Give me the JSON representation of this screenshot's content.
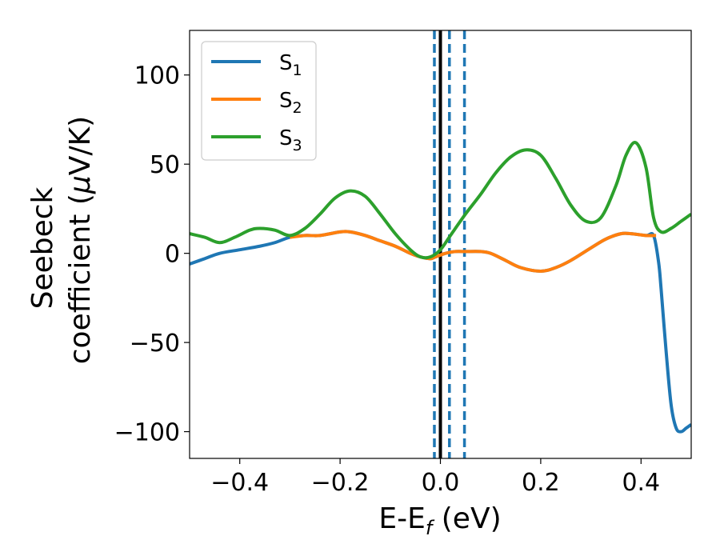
{
  "chart_data": {
    "type": "line",
    "xlabel": "E-E",
    "xlabel_sub": "f",
    "xlabel_unit": " (eV)",
    "ylabel_line1": "Seebeck",
    "ylabel_line2": "coefficient  (",
    "ylabel_mu": "μ",
    "ylabel_line2_end": "V/K)",
    "xlim": [
      -0.5,
      0.5
    ],
    "ylim": [
      -115,
      125
    ],
    "xticks": [
      -0.4,
      -0.2,
      0.0,
      0.2,
      0.4
    ],
    "xtick_labels": [
      "−0.4",
      "−0.2",
      "0.0",
      "0.2",
      "0.4"
    ],
    "yticks": [
      -100,
      -50,
      0,
      50,
      100
    ],
    "ytick_labels": [
      "−100",
      "−50",
      "0",
      "50",
      "100"
    ],
    "legend_position": "upper-left",
    "vlines": [
      {
        "x": 0.0,
        "style": "solid",
        "color": "#000000"
      },
      {
        "x": -0.012,
        "style": "dashed",
        "color": "#1f77b4"
      },
      {
        "x": 0.018,
        "style": "dashed",
        "color": "#1f77b4"
      },
      {
        "x": 0.048,
        "style": "dashed",
        "color": "#1f77b4"
      }
    ],
    "series": [
      {
        "name": "S",
        "sub": "1",
        "color": "#1f77b4",
        "x": [
          -0.5,
          -0.47,
          -0.44,
          -0.4,
          -0.36,
          -0.33,
          -0.3,
          -0.27,
          -0.24,
          -0.2,
          -0.18,
          -0.15,
          -0.12,
          -0.09,
          -0.06,
          -0.04,
          -0.02,
          -0.01,
          0.0,
          0.01,
          0.03,
          0.05,
          0.08,
          0.1,
          0.13,
          0.16,
          0.2,
          0.23,
          0.26,
          0.3,
          0.33,
          0.36,
          0.38,
          0.41,
          0.425,
          0.435,
          0.44,
          0.45,
          0.46,
          0.47,
          0.48,
          0.49,
          0.5
        ],
        "y": [
          -6,
          -3,
          0,
          2,
          4,
          6,
          9,
          10,
          10,
          12,
          12,
          10,
          7,
          4,
          0,
          -2,
          -3,
          -2,
          -1,
          0,
          1,
          1,
          1,
          0,
          -4,
          -8,
          -10,
          -8,
          -4,
          3,
          8,
          11,
          11,
          10,
          10,
          -5,
          -20,
          -55,
          -85,
          -98,
          -100,
          -98,
          -96
        ]
      },
      {
        "name": "S",
        "sub": "2",
        "color": "#ff7f0e",
        "x": [
          -0.3,
          -0.27,
          -0.24,
          -0.2,
          -0.18,
          -0.15,
          -0.12,
          -0.09,
          -0.06,
          -0.04,
          -0.02,
          -0.01,
          0.0,
          0.01,
          0.03,
          0.05,
          0.08,
          0.1,
          0.13,
          0.16,
          0.2,
          0.23,
          0.26,
          0.3,
          0.33,
          0.36,
          0.38,
          0.41,
          0.43
        ],
        "y": [
          9,
          10,
          10,
          12,
          12,
          10,
          7,
          4,
          0,
          -2,
          -3,
          -2,
          -1,
          0,
          1,
          1,
          1,
          0,
          -4,
          -8,
          -10,
          -8,
          -4,
          3,
          8,
          11,
          11,
          10,
          10
        ]
      },
      {
        "name": "S",
        "sub": "3",
        "color": "#2ca02c",
        "x": [
          -0.5,
          -0.47,
          -0.44,
          -0.41,
          -0.38,
          -0.36,
          -0.33,
          -0.3,
          -0.27,
          -0.24,
          -0.21,
          -0.18,
          -0.15,
          -0.12,
          -0.09,
          -0.06,
          -0.04,
          -0.02,
          0.0,
          0.02,
          0.05,
          0.08,
          0.11,
          0.14,
          0.17,
          0.2,
          0.23,
          0.26,
          0.29,
          0.32,
          0.35,
          0.37,
          0.39,
          0.41,
          0.425,
          0.44,
          0.46,
          0.48,
          0.5
        ],
        "y": [
          11,
          9,
          6,
          9,
          13,
          14,
          13,
          10,
          14,
          22,
          31,
          35,
          32,
          22,
          11,
          2,
          -2,
          -2,
          2,
          10,
          22,
          33,
          45,
          54,
          58,
          55,
          42,
          27,
          18,
          20,
          38,
          55,
          62,
          48,
          20,
          12,
          14,
          18,
          22
        ]
      }
    ]
  }
}
